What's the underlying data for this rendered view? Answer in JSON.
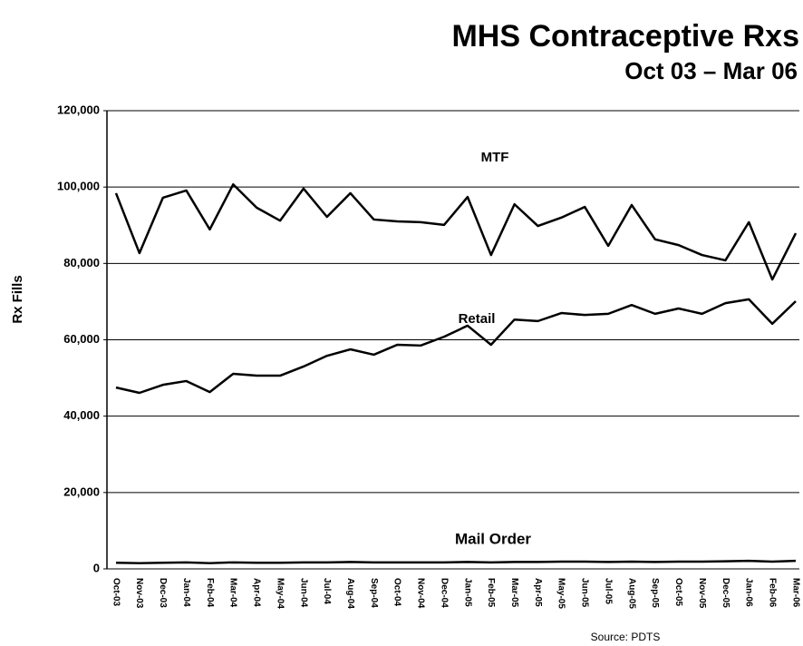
{
  "chart_data": {
    "type": "line",
    "title": "MHS Contraceptive Rxs",
    "subtitle": "Oct 03 – Mar 06",
    "ylabel": "Rx Fills",
    "source": "Source: PDTS",
    "categories": [
      "Oct-03",
      "Nov-03",
      "Dec-03",
      "Jan-04",
      "Feb-04",
      "Mar-04",
      "Apr-04",
      "May-04",
      "Jun-04",
      "Jul-04",
      "Aug-04",
      "Sep-04",
      "Oct-04",
      "Nov-04",
      "Dec-04",
      "Jan-05",
      "Feb-05",
      "Mar-05",
      "Apr-05",
      "May-05",
      "Jun-05",
      "Jul-05",
      "Aug-05",
      "Sep-05",
      "Oct-05",
      "Nov-05",
      "Dec-05",
      "Jan-06",
      "Feb-06",
      "Mar-06"
    ],
    "series": [
      {
        "name": "MTF",
        "color": "#000000",
        "values": [
          98400,
          82700,
          97200,
          99100,
          88900,
          100700,
          94600,
          91200,
          99600,
          92200,
          98400,
          91500,
          91000,
          90800,
          90100,
          97400,
          82200,
          95500,
          89800,
          92000,
          94800,
          84600,
          95300,
          86300,
          84800,
          82200,
          80800,
          90800,
          75800,
          87900
        ]
      },
      {
        "name": "Retail",
        "color": "#000000",
        "values": [
          47500,
          46100,
          48200,
          49200,
          46300,
          51100,
          50600,
          50600,
          53000,
          55800,
          57500,
          56100,
          58700,
          58500,
          60800,
          63700,
          58700,
          65300,
          64900,
          67000,
          66500,
          66800,
          69100,
          66800,
          68200,
          66800,
          69600,
          70600,
          64200,
          70100
        ]
      },
      {
        "name": "Mail Order",
        "color": "#000000",
        "values": [
          1600,
          1500,
          1600,
          1700,
          1500,
          1700,
          1600,
          1600,
          1700,
          1700,
          1800,
          1700,
          1700,
          1700,
          1700,
          1800,
          1700,
          1800,
          1800,
          1900,
          1900,
          1800,
          1900,
          1800,
          1900,
          1900,
          2000,
          2100,
          1900,
          2100
        ]
      }
    ],
    "ylim": [
      0,
      120000
    ],
    "yticks": [
      0,
      {
        "value": 20000,
        "label": "20,000"
      },
      {
        "value": 40000,
        "label": "40,000"
      },
      {
        "value": 60000,
        "label": "60,000"
      },
      {
        "value": 80000,
        "label": "80,000"
      },
      {
        "value": 100000,
        "label": "100,000"
      },
      {
        "value": 120000,
        "label": "120,000"
      }
    ],
    "grid": true
  }
}
